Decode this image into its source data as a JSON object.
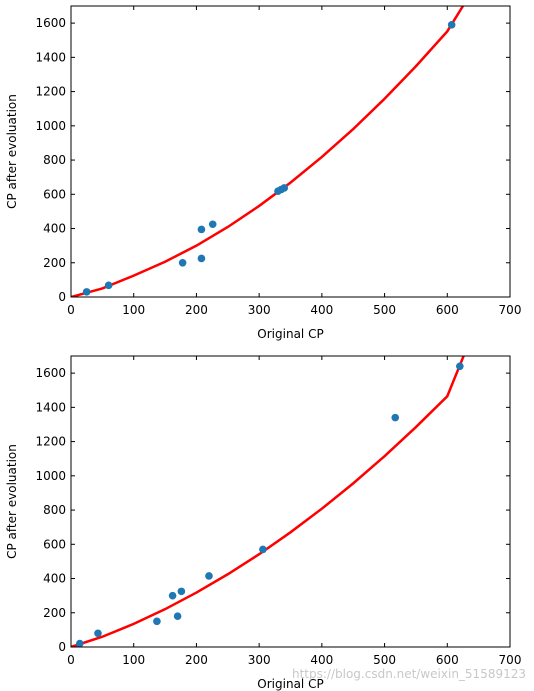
{
  "chart_data": [
    {
      "type": "scatter",
      "xlabel": "Original CP",
      "ylabel": "CP after evoluation",
      "xlim": [
        0,
        700
      ],
      "ylim": [
        0,
        1700
      ],
      "xticks": [
        0,
        100,
        200,
        300,
        400,
        500,
        600,
        700
      ],
      "yticks": [
        0,
        200,
        400,
        600,
        800,
        1000,
        1200,
        1400,
        1600
      ],
      "grid": false,
      "colors": {
        "points": "#1f77b4",
        "curve": "#ff0000"
      },
      "points": {
        "x": [
          25,
          60,
          178,
          208,
          208,
          226,
          330,
          335,
          340,
          607
        ],
        "y": [
          30,
          68,
          200,
          225,
          395,
          425,
          618,
          628,
          637,
          1590
        ]
      },
      "curve": {
        "x": [
          0,
          50,
          100,
          150,
          200,
          250,
          300,
          350,
          400,
          450,
          500,
          550,
          600,
          625
        ],
        "y": [
          0,
          50,
          125,
          206,
          300,
          409,
          532,
          668,
          818,
          981,
          1158,
          1348,
          1552,
          1700
        ]
      }
    },
    {
      "type": "scatter",
      "xlabel": "Original CP",
      "ylabel": "CP after evoluation",
      "xlim": [
        0,
        700
      ],
      "ylim": [
        0,
        1700
      ],
      "xticks": [
        0,
        100,
        200,
        300,
        400,
        500,
        600,
        700
      ],
      "yticks": [
        0,
        200,
        400,
        600,
        800,
        1000,
        1200,
        1400,
        1600
      ],
      "grid": false,
      "colors": {
        "points": "#1f77b4",
        "curve": "#ff0000"
      },
      "points": {
        "x": [
          14,
          43,
          137,
          162,
          170,
          176,
          220,
          306,
          517,
          620
        ],
        "y": [
          20,
          80,
          150,
          300,
          180,
          325,
          415,
          570,
          1340,
          1640
        ]
      },
      "curve": {
        "x": [
          0,
          50,
          100,
          150,
          200,
          250,
          300,
          350,
          400,
          450,
          500,
          550,
          600,
          626
        ],
        "y": [
          0,
          60,
          135,
          221,
          318,
          425,
          542,
          670,
          808,
          956,
          1115,
          1285,
          1465,
          1700
        ]
      }
    }
  ],
  "watermark": "https://blog.csdn.net/weixin_51589123"
}
